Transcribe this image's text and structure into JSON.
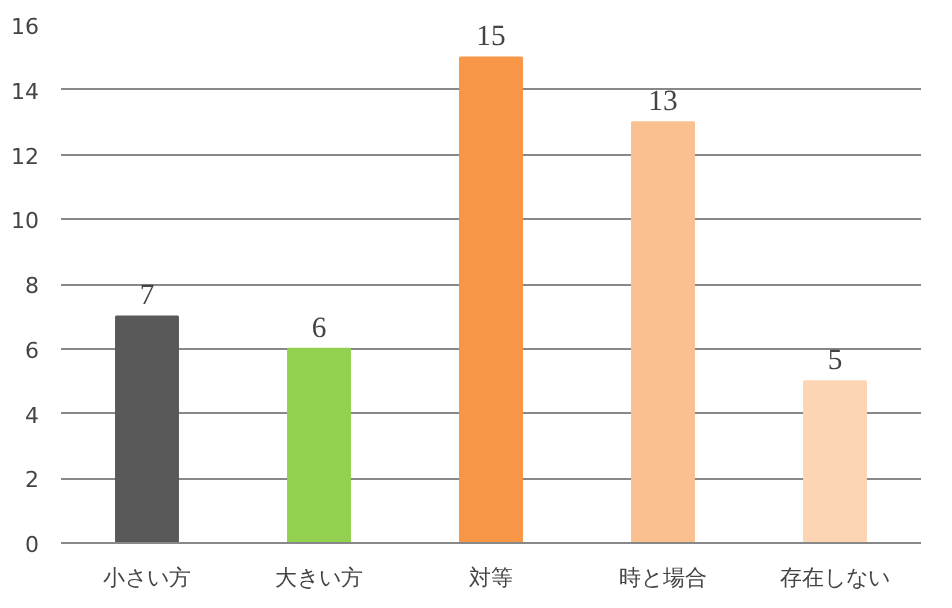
{
  "chart_data": {
    "type": "bar",
    "categories": [
      "小さい方",
      "大きい方",
      "対等",
      "時と場合",
      "存在しない"
    ],
    "values": [
      7,
      6,
      15,
      13,
      5
    ],
    "colors": [
      "#595959",
      "#92d050",
      "#f79646",
      "#fac090",
      "#fcd5b5"
    ],
    "ylim": [
      0,
      16
    ],
    "yticks": [
      0,
      2,
      4,
      6,
      8,
      10,
      12,
      14,
      16
    ],
    "grid": "y",
    "data_labels": true
  }
}
